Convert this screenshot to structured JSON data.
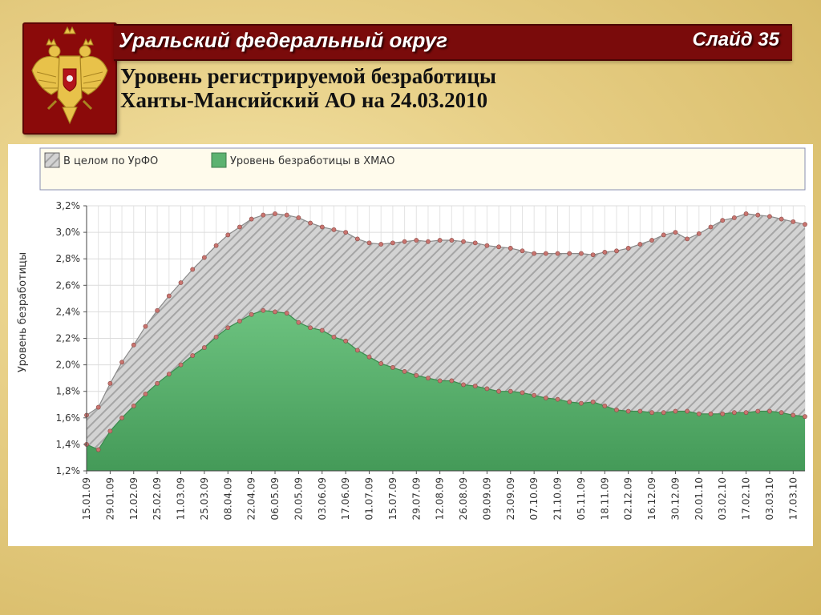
{
  "header": {
    "region_title": "Уральский федеральный округ",
    "slide_number": "Слайд 35"
  },
  "subtitle": {
    "line1": "Уровень регистрируемой безработицы",
    "line2": "Ханты-Мансийский АО на 24.03.2010"
  },
  "colors": {
    "header_bg": "#7a0b0b",
    "emblem_bg": "#8b0a0a",
    "urfo_fill": "#c8c8c8",
    "hmao_fill": "#5cb270",
    "marker": "#c9746f"
  },
  "icons": {
    "emblem": "coat-of-arms-icon"
  },
  "chart_data": {
    "type": "area",
    "ylabel": "Уровень безработицы",
    "ylim": [
      1.2,
      3.2
    ],
    "yticks": [
      "1,2%",
      "1,4%",
      "1,6%",
      "1,8%",
      "2,0%",
      "2,2%",
      "2,4%",
      "2,6%",
      "2,8%",
      "3,0%",
      "3,2%"
    ],
    "xtick_labels": [
      "15.01.09",
      "29.01.09",
      "12.02.09",
      "25.02.09",
      "11.03.09",
      "25.03.09",
      "08.04.09",
      "22.04.09",
      "06.05.09",
      "20.05.09",
      "03.06.09",
      "17.06.09",
      "01.07.09",
      "15.07.09",
      "29.07.09",
      "12.08.09",
      "26.08.09",
      "09.09.09",
      "23.09.09",
      "07.10.09",
      "21.10.09",
      "05.11.09",
      "18.11.09",
      "02.12.09",
      "16.12.09",
      "30.12.09",
      "20.01.10",
      "03.02.10",
      "17.02.10",
      "03.03.10",
      "17.03.10"
    ],
    "grid": true,
    "legend_position": "top",
    "series": [
      {
        "name": "В целом по УрФО",
        "values": [
          1.62,
          1.68,
          1.86,
          2.02,
          2.15,
          2.29,
          2.41,
          2.52,
          2.62,
          2.72,
          2.81,
          2.9,
          2.98,
          3.04,
          3.1,
          3.13,
          3.14,
          3.13,
          3.11,
          3.07,
          3.04,
          3.02,
          3.0,
          2.95,
          2.92,
          2.91,
          2.92,
          2.93,
          2.94,
          2.93,
          2.94,
          2.94,
          2.93,
          2.92,
          2.9,
          2.89,
          2.88,
          2.86,
          2.84,
          2.84,
          2.84,
          2.84,
          2.84,
          2.83,
          2.85,
          2.86,
          2.88,
          2.91,
          2.94,
          2.98,
          3.0,
          2.95,
          2.99,
          3.04,
          3.09,
          3.11,
          3.14,
          3.13,
          3.12,
          3.1,
          3.08,
          3.06
        ]
      },
      {
        "name": "Уровень безработицы в ХМАО",
        "values": [
          1.4,
          1.36,
          1.5,
          1.6,
          1.69,
          1.78,
          1.86,
          1.93,
          2.0,
          2.07,
          2.13,
          2.21,
          2.28,
          2.33,
          2.38,
          2.41,
          2.4,
          2.39,
          2.32,
          2.28,
          2.26,
          2.21,
          2.18,
          2.11,
          2.06,
          2.01,
          1.98,
          1.95,
          1.92,
          1.9,
          1.88,
          1.88,
          1.85,
          1.84,
          1.82,
          1.8,
          1.8,
          1.79,
          1.77,
          1.75,
          1.74,
          1.72,
          1.71,
          1.72,
          1.69,
          1.66,
          1.65,
          1.65,
          1.64,
          1.64,
          1.65,
          1.65,
          1.63,
          1.63,
          1.63,
          1.64,
          1.64,
          1.65,
          1.65,
          1.64,
          1.62,
          1.61
        ]
      }
    ]
  }
}
